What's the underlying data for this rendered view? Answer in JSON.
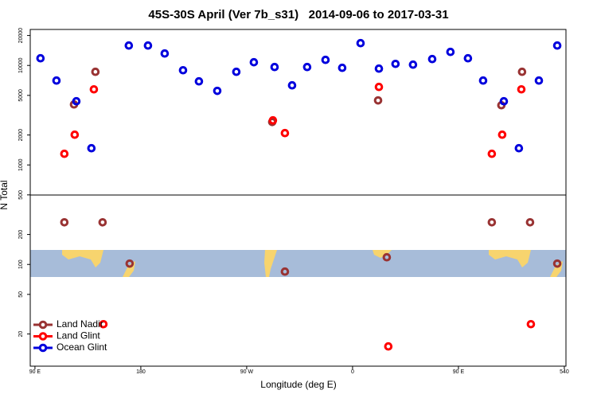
{
  "chart_data": {
    "type": "scatter",
    "title": "45S-30S April (Ver 7b_s31)   2014-09-06 to 2017-03-31",
    "xlabel": "Longitude (deg E)",
    "ylabel": "N Total",
    "yscale": "log",
    "xlim": [
      86,
      541.4
    ],
    "ylim": [
      9.5,
      23000
    ],
    "xticks": [
      {
        "value": 90,
        "label": "90 E"
      },
      180,
      {
        "value": 270,
        "label": "90 W"
      },
      {
        "value": 360,
        "label": "0"
      },
      {
        "value": 450,
        "label": "90 E"
      },
      540
    ],
    "yticks": [
      20,
      50,
      100,
      200,
      500,
      1000,
      2000,
      5000,
      10000,
      20000
    ],
    "legend": "lower left",
    "series": [
      {
        "name": "Land Nadir",
        "color": "#993333",
        "x": [
          123.2,
          141.4,
          115,
          147.5,
          170.5,
          291.7,
          302.5,
          381.7,
          389.1,
          478.4,
          486.5,
          504.1,
          510.9,
          534
        ],
        "values": [
          4055,
          8630,
          265,
          265,
          102,
          2700,
          84.7,
          4450,
          118,
          265,
          3980,
          8630,
          265,
          102
        ]
      },
      {
        "name": "Land Glint",
        "color": "#ff0000",
        "x": [
          115,
          123.8,
          140.1,
          292.3,
          302.5,
          382.4,
          478.4,
          487.2,
          503.5,
          148.2,
          511.6,
          390.4
        ],
        "values": [
          1294,
          2014,
          5750,
          2805,
          2090,
          6080,
          1294,
          2014,
          5750,
          25.1,
          25.1,
          15
        ]
      },
      {
        "name": "Ocean Glint",
        "color": "#0000dd",
        "x": [
          94.7,
          108.3,
          125.2,
          138,
          169.8,
          186.1,
          200.3,
          215.9,
          229.4,
          245,
          261.2,
          276.1,
          293.7,
          308.6,
          321.4,
          337,
          351.2,
          366.8,
          382.4,
          396.5,
          411.4,
          427.7,
          443.2,
          458.1,
          471,
          488.6,
          501.4,
          518.4,
          534
        ],
        "values": [
          11800,
          7050,
          4365,
          1472,
          15850,
          15850,
          13180,
          8950,
          6920,
          5550,
          8630,
          10770,
          9640,
          6310,
          9640,
          11380,
          9460,
          16750,
          9290,
          10370,
          10190,
          11590,
          13680,
          11800,
          7050,
          4365,
          1472,
          7050,
          15850
        ]
      }
    ]
  }
}
